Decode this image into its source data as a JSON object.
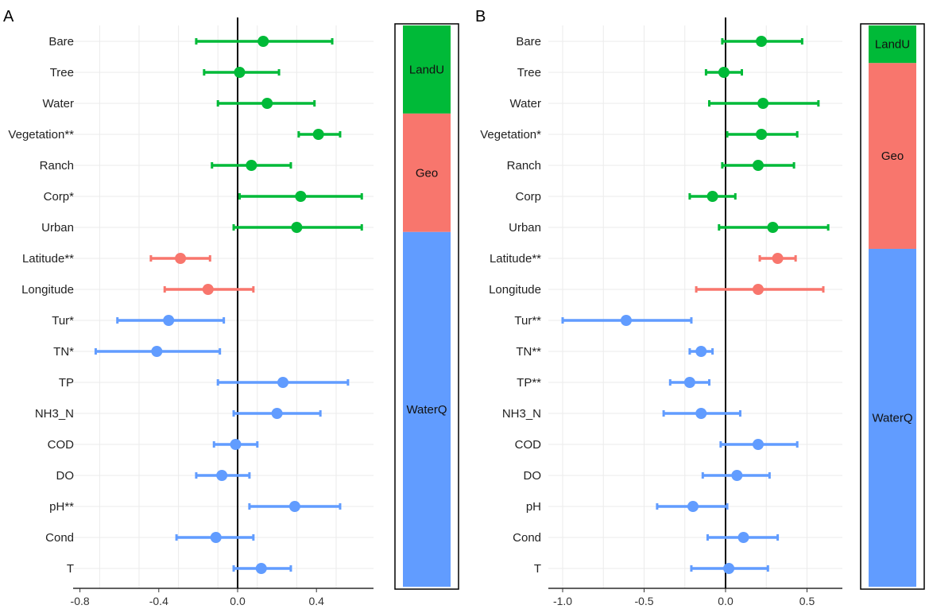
{
  "colors": {
    "LandU": "#00BA38",
    "Geo": "#F8766D",
    "WaterQ": "#619CFF"
  },
  "chart_data": [
    {
      "type": "scatter",
      "panel": "A",
      "title": "A",
      "xlabel": "",
      "ylabel": "",
      "xlim": [
        -0.82,
        0.7
      ],
      "xticks": [
        "-0.8",
        "-0.4",
        "0.0",
        "0.4"
      ],
      "xtick_values": [
        -0.8,
        -0.4,
        0.0,
        0.4
      ],
      "rows": [
        {
          "label": "Bare",
          "group": "LandU",
          "est": 0.13,
          "lo": -0.21,
          "hi": 0.48
        },
        {
          "label": "Tree",
          "group": "LandU",
          "est": 0.01,
          "lo": -0.17,
          "hi": 0.21
        },
        {
          "label": "Water",
          "group": "LandU",
          "est": 0.15,
          "lo": -0.1,
          "hi": 0.39
        },
        {
          "label": "Vegetation**",
          "group": "LandU",
          "est": 0.41,
          "lo": 0.31,
          "hi": 0.52
        },
        {
          "label": "Ranch",
          "group": "LandU",
          "est": 0.07,
          "lo": -0.13,
          "hi": 0.27
        },
        {
          "label": "Corp*",
          "group": "LandU",
          "est": 0.32,
          "lo": 0.01,
          "hi": 0.63
        },
        {
          "label": "Urban",
          "group": "LandU",
          "est": 0.3,
          "lo": -0.02,
          "hi": 0.63
        },
        {
          "label": "Latitude**",
          "group": "Geo",
          "est": -0.29,
          "lo": -0.44,
          "hi": -0.14
        },
        {
          "label": "Longitude",
          "group": "Geo",
          "est": -0.15,
          "lo": -0.37,
          "hi": 0.08
        },
        {
          "label": "Tur*",
          "group": "WaterQ",
          "est": -0.35,
          "lo": -0.61,
          "hi": -0.07
        },
        {
          "label": "TN*",
          "group": "WaterQ",
          "est": -0.41,
          "lo": -0.72,
          "hi": -0.09
        },
        {
          "label": "TP",
          "group": "WaterQ",
          "est": 0.23,
          "lo": -0.1,
          "hi": 0.56
        },
        {
          "label": "NH3_N",
          "group": "WaterQ",
          "est": 0.2,
          "lo": -0.02,
          "hi": 0.42
        },
        {
          "label": "COD",
          "group": "WaterQ",
          "est": -0.01,
          "lo": -0.12,
          "hi": 0.1
        },
        {
          "label": "DO",
          "group": "WaterQ",
          "est": -0.08,
          "lo": -0.21,
          "hi": 0.06
        },
        {
          "label": "pH**",
          "group": "WaterQ",
          "est": 0.29,
          "lo": 0.06,
          "hi": 0.52
        },
        {
          "label": "Cond",
          "group": "WaterQ",
          "est": -0.11,
          "lo": -0.31,
          "hi": 0.08
        },
        {
          "label": "T",
          "group": "WaterQ",
          "est": 0.12,
          "lo": -0.02,
          "hi": 0.27
        }
      ],
      "group_bar": [
        {
          "label": "LandU",
          "fraction": 0.157
        },
        {
          "label": "Geo",
          "fraction": 0.211
        },
        {
          "label": "WaterQ",
          "fraction": 0.632
        }
      ]
    },
    {
      "type": "scatter",
      "panel": "B",
      "title": "B",
      "xlabel": "",
      "ylabel": "",
      "xlim": [
        -1.09,
        0.72
      ],
      "xticks": [
        "-1.0",
        "-0.5",
        "0.0",
        "0.5"
      ],
      "xtick_values": [
        -1.0,
        -0.5,
        0.0,
        0.5
      ],
      "rows": [
        {
          "label": "Bare",
          "group": "LandU",
          "est": 0.22,
          "lo": -0.02,
          "hi": 0.47
        },
        {
          "label": "Tree",
          "group": "LandU",
          "est": -0.01,
          "lo": -0.12,
          "hi": 0.1
        },
        {
          "label": "Water",
          "group": "LandU",
          "est": 0.23,
          "lo": -0.1,
          "hi": 0.57
        },
        {
          "label": "Vegetation*",
          "group": "LandU",
          "est": 0.22,
          "lo": 0.01,
          "hi": 0.44
        },
        {
          "label": "Ranch",
          "group": "LandU",
          "est": 0.2,
          "lo": -0.02,
          "hi": 0.42
        },
        {
          "label": "Corp",
          "group": "LandU",
          "est": -0.08,
          "lo": -0.22,
          "hi": 0.06
        },
        {
          "label": "Urban",
          "group": "LandU",
          "est": 0.29,
          "lo": -0.04,
          "hi": 0.63
        },
        {
          "label": "Latitude**",
          "group": "Geo",
          "est": 0.32,
          "lo": 0.21,
          "hi": 0.43
        },
        {
          "label": "Longitude",
          "group": "Geo",
          "est": 0.2,
          "lo": -0.18,
          "hi": 0.6
        },
        {
          "label": "Tur**",
          "group": "WaterQ",
          "est": -0.61,
          "lo": -1.0,
          "hi": -0.21
        },
        {
          "label": "TN**",
          "group": "WaterQ",
          "est": -0.15,
          "lo": -0.22,
          "hi": -0.08
        },
        {
          "label": "TP**",
          "group": "WaterQ",
          "est": -0.22,
          "lo": -0.34,
          "hi": -0.1
        },
        {
          "label": "NH3_N",
          "group": "WaterQ",
          "est": -0.15,
          "lo": -0.38,
          "hi": 0.09
        },
        {
          "label": "COD",
          "group": "WaterQ",
          "est": 0.2,
          "lo": -0.03,
          "hi": 0.44
        },
        {
          "label": "DO",
          "group": "WaterQ",
          "est": 0.07,
          "lo": -0.14,
          "hi": 0.27
        },
        {
          "label": "pH",
          "group": "WaterQ",
          "est": -0.2,
          "lo": -0.42,
          "hi": 0.01
        },
        {
          "label": "Cond",
          "group": "WaterQ",
          "est": 0.11,
          "lo": -0.11,
          "hi": 0.32
        },
        {
          "label": "T",
          "group": "WaterQ",
          "est": 0.02,
          "lo": -0.21,
          "hi": 0.26
        }
      ],
      "group_bar": [
        {
          "label": "LandU",
          "fraction": 0.067
        },
        {
          "label": "Geo",
          "fraction": 0.331
        },
        {
          "label": "WaterQ",
          "fraction": 0.602
        }
      ]
    }
  ]
}
